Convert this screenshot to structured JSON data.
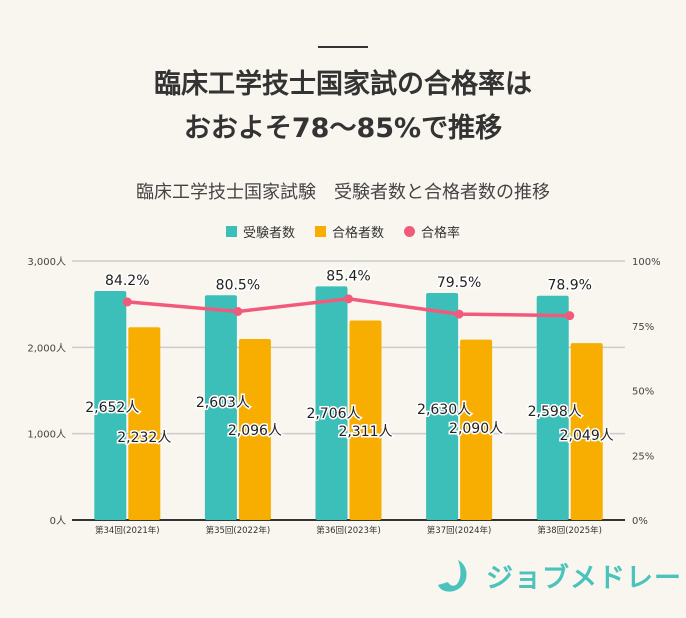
{
  "headline": {
    "line1": "臨床工学技士国家試の合格率は",
    "line2": "おおよそ78～85%で推移"
  },
  "brand": {
    "name": "ジョブメドレー",
    "color": "#4cc2bd"
  },
  "chart_data": {
    "type": "bar+line",
    "title": "臨床工学技士国家試験　受験者数と合格者数の推移",
    "categories": [
      "第34回(2021年)",
      "第35回(2022年)",
      "第36回(2023年)",
      "第37回(2024年)",
      "第38回(2025年)"
    ],
    "series": [
      {
        "name": "受験者数",
        "type": "bar",
        "axis": "left",
        "color": "#3cbfb9",
        "values": [
          2652,
          2603,
          2706,
          2630,
          2598
        ],
        "labels": [
          "2,652人",
          "2,603人",
          "2,706人",
          "2,630人",
          "2,598人"
        ]
      },
      {
        "name": "合格者数",
        "type": "bar",
        "axis": "left",
        "color": "#f8ae00",
        "values": [
          2232,
          2096,
          2311,
          2090,
          2049
        ],
        "labels": [
          "2,232人",
          "2,096人",
          "2,311人",
          "2,090人",
          "2,049人"
        ]
      },
      {
        "name": "合格率",
        "type": "line",
        "axis": "right",
        "color": "#f25a7c",
        "values": [
          84.2,
          80.5,
          85.4,
          79.5,
          78.9
        ],
        "labels": [
          "84.2%",
          "80.5%",
          "85.4%",
          "79.5%",
          "78.9%"
        ]
      }
    ],
    "left_axis": {
      "range": [
        0,
        3000
      ],
      "ticks": [
        "0人",
        "1,000人",
        "2,000人",
        "3,000人"
      ]
    },
    "right_axis": {
      "range": [
        0,
        100
      ],
      "ticks": [
        "0%",
        "25%",
        "50%",
        "75%",
        "100%"
      ]
    },
    "grid": true,
    "legend": "top-center"
  }
}
